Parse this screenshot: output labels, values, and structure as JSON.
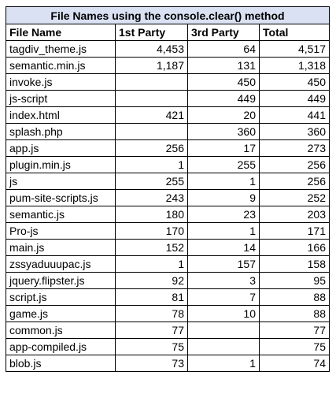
{
  "chart_data": {
    "type": "table",
    "title": "File Names using the console.clear() method",
    "columns": [
      "File Name",
      "1st Party",
      "3rd Party",
      "Total"
    ],
    "rows": [
      [
        "tagdiv_theme.js",
        "4,453",
        "64",
        "4,517"
      ],
      [
        "semantic.min.js",
        "1,187",
        "131",
        "1,318"
      ],
      [
        "invoke.js",
        "",
        "450",
        "450"
      ],
      [
        "js-script",
        "",
        "449",
        "449"
      ],
      [
        "index.html",
        "421",
        "20",
        "441"
      ],
      [
        "splash.php",
        "",
        "360",
        "360"
      ],
      [
        "app.js",
        "256",
        "17",
        "273"
      ],
      [
        "plugin.min.js",
        "1",
        "255",
        "256"
      ],
      [
        "js",
        "255",
        "1",
        "256"
      ],
      [
        "pum-site-scripts.js",
        "243",
        "9",
        "252"
      ],
      [
        "semantic.js",
        "180",
        "23",
        "203"
      ],
      [
        "Pro-js",
        "170",
        "1",
        "171"
      ],
      [
        "main.js",
        "152",
        "14",
        "166"
      ],
      [
        "zssyaduuupac.js",
        "1",
        "157",
        "158"
      ],
      [
        "jquery.flipster.js",
        "92",
        "3",
        "95"
      ],
      [
        "script.js",
        "81",
        "7",
        "88"
      ],
      [
        "game.js",
        "78",
        "10",
        "88"
      ],
      [
        "common.js",
        "77",
        "",
        "77"
      ],
      [
        "app-compiled.js",
        "75",
        "",
        "75"
      ],
      [
        "blob.js",
        "73",
        "1",
        "74"
      ]
    ]
  },
  "colors": {
    "title_background": "#d9e1f2",
    "border": "#000000"
  }
}
